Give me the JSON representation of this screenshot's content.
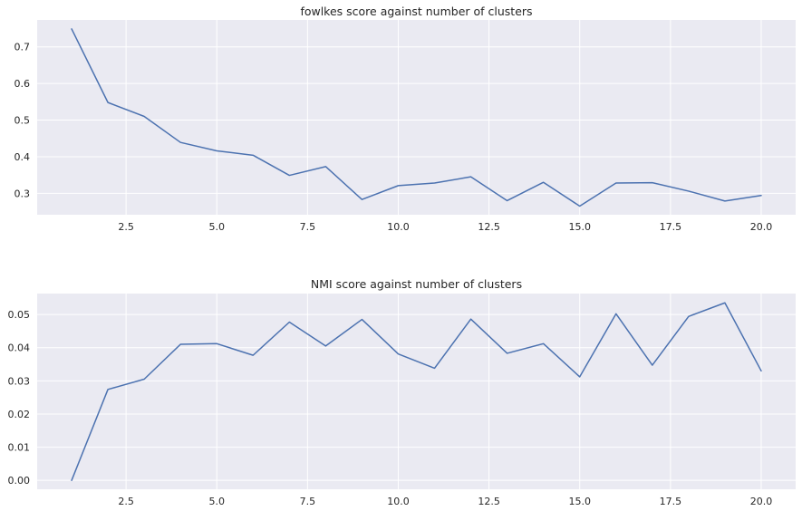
{
  "figure": {
    "background": "#ffffff",
    "axes_background": "#eaeaf2",
    "grid_color": "#ffffff",
    "line_color": "#4c72b0",
    "text_color": "#262626"
  },
  "chart_data": [
    {
      "type": "line",
      "title": "fowlkes score against number of clusters",
      "xlabel": "",
      "ylabel": "",
      "grid": true,
      "xlim": [
        0.05,
        20.95
      ],
      "ylim": [
        0.2415,
        0.7735
      ],
      "xticks": [
        2.5,
        5.0,
        7.5,
        10.0,
        12.5,
        15.0,
        17.5,
        20.0
      ],
      "xtick_labels": [
        "2.5",
        "5.0",
        "7.5",
        "10.0",
        "12.5",
        "15.0",
        "17.5",
        "20.0"
      ],
      "yticks": [
        0.3,
        0.4,
        0.5,
        0.6,
        0.7
      ],
      "ytick_labels": [
        "0.3",
        "0.4",
        "0.5",
        "0.6",
        "0.7"
      ],
      "x": [
        1,
        2,
        3,
        4,
        5,
        6,
        7,
        8,
        9,
        10,
        11,
        12,
        13,
        14,
        15,
        16,
        17,
        18,
        19,
        20
      ],
      "series": [
        {
          "values": [
            0.749,
            0.548,
            0.51,
            0.439,
            0.416,
            0.404,
            0.349,
            0.373,
            0.283,
            0.321,
            0.328,
            0.345,
            0.28,
            0.33,
            0.265,
            0.328,
            0.329,
            0.306,
            0.279,
            0.294
          ]
        }
      ]
    },
    {
      "type": "line",
      "title": "NMI score against number of clusters",
      "xlabel": "",
      "ylabel": "",
      "grid": true,
      "xlim": [
        0.05,
        20.95
      ],
      "ylim": [
        -0.00268,
        0.0563
      ],
      "xticks": [
        2.5,
        5.0,
        7.5,
        10.0,
        12.5,
        15.0,
        17.5,
        20.0
      ],
      "xtick_labels": [
        "2.5",
        "5.0",
        "7.5",
        "10.0",
        "12.5",
        "15.0",
        "17.5",
        "20.0"
      ],
      "yticks": [
        0.0,
        0.01,
        0.02,
        0.03,
        0.04,
        0.05
      ],
      "ytick_labels": [
        "0.00",
        "0.01",
        "0.02",
        "0.03",
        "0.04",
        "0.05"
      ],
      "x": [
        1,
        2,
        3,
        4,
        5,
        6,
        7,
        8,
        9,
        10,
        11,
        12,
        13,
        14,
        15,
        16,
        17,
        18,
        19,
        20
      ],
      "series": [
        {
          "values": [
            0.0,
            0.0274,
            0.0305,
            0.041,
            0.0412,
            0.0377,
            0.0477,
            0.0405,
            0.0485,
            0.0381,
            0.0338,
            0.0486,
            0.0383,
            0.0412,
            0.0312,
            0.0502,
            0.0347,
            0.0494,
            0.0535,
            0.033
          ]
        }
      ]
    }
  ]
}
